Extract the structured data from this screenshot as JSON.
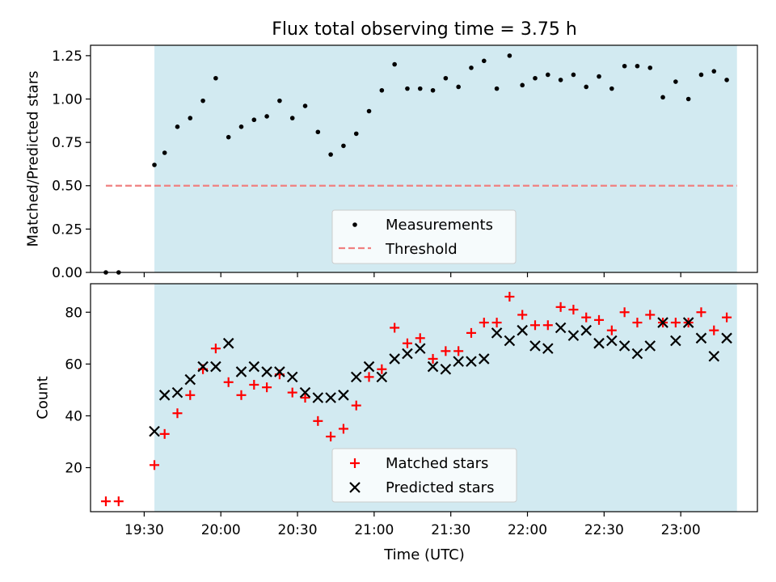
{
  "title": "Flux total observing time = 3.75 h",
  "colors": {
    "band": "#add8e6",
    "measurement": "#000000",
    "threshold": "#f08080",
    "matched": "#ff0000",
    "predicted": "#000000"
  },
  "chart_data": [
    {
      "type": "scatter",
      "title": "Flux total observing time = 3.75 h",
      "xlabel": "",
      "ylabel": "Matched/Predicted stars",
      "ylim": [
        0,
        1.31
      ],
      "yticks": [
        "0.00",
        "0.25",
        "0.50",
        "0.75",
        "1.00",
        "1.25"
      ],
      "ytick_values": [
        0,
        0.25,
        0.5,
        0.75,
        1.0,
        1.25
      ],
      "legend": {
        "placement": "lower-center",
        "entries": [
          "Measurements",
          "Threshold"
        ]
      },
      "shaded_band": {
        "start": "19:34",
        "end": "23:22"
      },
      "threshold": {
        "y": 0.5,
        "start": "19:15",
        "end": "23:22"
      },
      "series": [
        {
          "name": "Measurements",
          "x": [
            "19:15",
            "19:20",
            "19:34",
            "19:38",
            "19:43",
            "19:48",
            "19:53",
            "19:58",
            "20:03",
            "20:08",
            "20:13",
            "20:18",
            "20:23",
            "20:28",
            "20:33",
            "20:38",
            "20:43",
            "20:48",
            "20:53",
            "20:58",
            "21:03",
            "21:08",
            "21:13",
            "21:18",
            "21:23",
            "21:28",
            "21:33",
            "21:38",
            "21:43",
            "21:48",
            "21:53",
            "21:58",
            "22:03",
            "22:08",
            "22:13",
            "22:18",
            "22:23",
            "22:28",
            "22:33",
            "22:38",
            "22:43",
            "22:48",
            "22:53",
            "22:58",
            "23:03",
            "23:08",
            "23:13",
            "23:18"
          ],
          "y": [
            0.0,
            0.0,
            0.62,
            0.69,
            0.84,
            0.89,
            0.99,
            1.12,
            0.78,
            0.84,
            0.88,
            0.9,
            0.99,
            0.89,
            0.96,
            0.81,
            0.68,
            0.73,
            0.8,
            0.93,
            1.05,
            1.2,
            1.06,
            1.06,
            1.05,
            1.12,
            1.07,
            1.18,
            1.22,
            1.06,
            1.25,
            1.08,
            1.12,
            1.14,
            1.11,
            1.14,
            1.07,
            1.13,
            1.06,
            1.19,
            1.19,
            1.18,
            1.01,
            1.1,
            1.0,
            1.14,
            1.16,
            1.11
          ]
        }
      ]
    },
    {
      "type": "scatter",
      "title": "",
      "xlabel": "Time (UTC)",
      "ylabel": "Count",
      "ylim": [
        3,
        91
      ],
      "yticks": [
        "20",
        "40",
        "60",
        "80"
      ],
      "ytick_values": [
        20,
        40,
        60,
        80
      ],
      "xticks": [
        "19:30",
        "20:00",
        "20:30",
        "21:00",
        "21:30",
        "22:00",
        "22:30",
        "23:00"
      ],
      "xlim": [
        "19:09",
        "23:30"
      ],
      "legend": {
        "placement": "lower-center",
        "entries": [
          "Matched stars",
          "Predicted stars"
        ]
      },
      "shaded_band": {
        "start": "19:34",
        "end": "23:22"
      },
      "x": [
        "19:15",
        "19:20",
        "19:34",
        "19:38",
        "19:43",
        "19:48",
        "19:53",
        "19:58",
        "20:03",
        "20:08",
        "20:13",
        "20:18",
        "20:23",
        "20:28",
        "20:33",
        "20:38",
        "20:43",
        "20:48",
        "20:53",
        "20:58",
        "21:03",
        "21:08",
        "21:13",
        "21:18",
        "21:23",
        "21:28",
        "21:33",
        "21:38",
        "21:43",
        "21:48",
        "21:53",
        "21:58",
        "22:03",
        "22:08",
        "22:13",
        "22:18",
        "22:23",
        "22:28",
        "22:33",
        "22:38",
        "22:43",
        "22:48",
        "22:53",
        "22:58",
        "23:03",
        "23:08",
        "23:13",
        "23:18"
      ],
      "series": [
        {
          "name": "Matched stars",
          "values": [
            7,
            7,
            21,
            33,
            41,
            48,
            58,
            66,
            53,
            48,
            52,
            51,
            56,
            49,
            47,
            38,
            32,
            35,
            44,
            55,
            58,
            74,
            68,
            70,
            62,
            65,
            65,
            72,
            76,
            76,
            86,
            79,
            75,
            75,
            82,
            81,
            78,
            77,
            73,
            80,
            76,
            79,
            76,
            76,
            76,
            80,
            73,
            78
          ]
        },
        {
          "name": "Predicted stars",
          "values": [
            null,
            null,
            34,
            48,
            49,
            54,
            59,
            59,
            68,
            57,
            59,
            57,
            57,
            55,
            49,
            47,
            47,
            48,
            55,
            59,
            55,
            62,
            64,
            66,
            59,
            58,
            61,
            61,
            62,
            72,
            69,
            73,
            67,
            66,
            74,
            71,
            73,
            68,
            69,
            67,
            64,
            67,
            76,
            69,
            76,
            70,
            63,
            70
          ]
        }
      ]
    }
  ]
}
